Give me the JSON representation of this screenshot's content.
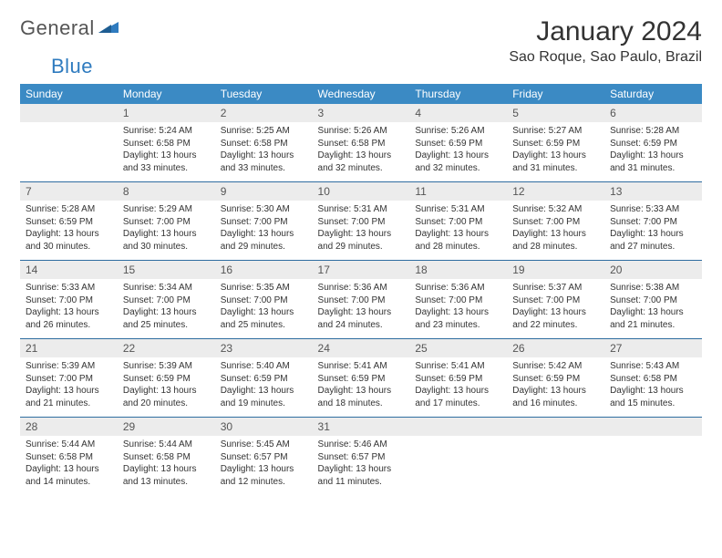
{
  "brand": {
    "part1": "General",
    "part2": "Blue"
  },
  "title": "January 2024",
  "location": "Sao Roque, Sao Paulo, Brazil",
  "colors": {
    "header_bg": "#3b8ac4",
    "header_text": "#ffffff",
    "daynum_bg": "#ececec",
    "divider": "#2f6da0",
    "text": "#333333",
    "logo_blue": "#2f7bbf"
  },
  "dayNames": [
    "Sunday",
    "Monday",
    "Tuesday",
    "Wednesday",
    "Thursday",
    "Friday",
    "Saturday"
  ],
  "weeks": [
    [
      null,
      {
        "n": "1",
        "sr": "5:24 AM",
        "ss": "6:58 PM",
        "dl": "13 hours and 33 minutes."
      },
      {
        "n": "2",
        "sr": "5:25 AM",
        "ss": "6:58 PM",
        "dl": "13 hours and 33 minutes."
      },
      {
        "n": "3",
        "sr": "5:26 AM",
        "ss": "6:58 PM",
        "dl": "13 hours and 32 minutes."
      },
      {
        "n": "4",
        "sr": "5:26 AM",
        "ss": "6:59 PM",
        "dl": "13 hours and 32 minutes."
      },
      {
        "n": "5",
        "sr": "5:27 AM",
        "ss": "6:59 PM",
        "dl": "13 hours and 31 minutes."
      },
      {
        "n": "6",
        "sr": "5:28 AM",
        "ss": "6:59 PM",
        "dl": "13 hours and 31 minutes."
      }
    ],
    [
      {
        "n": "7",
        "sr": "5:28 AM",
        "ss": "6:59 PM",
        "dl": "13 hours and 30 minutes."
      },
      {
        "n": "8",
        "sr": "5:29 AM",
        "ss": "7:00 PM",
        "dl": "13 hours and 30 minutes."
      },
      {
        "n": "9",
        "sr": "5:30 AM",
        "ss": "7:00 PM",
        "dl": "13 hours and 29 minutes."
      },
      {
        "n": "10",
        "sr": "5:31 AM",
        "ss": "7:00 PM",
        "dl": "13 hours and 29 minutes."
      },
      {
        "n": "11",
        "sr": "5:31 AM",
        "ss": "7:00 PM",
        "dl": "13 hours and 28 minutes."
      },
      {
        "n": "12",
        "sr": "5:32 AM",
        "ss": "7:00 PM",
        "dl": "13 hours and 28 minutes."
      },
      {
        "n": "13",
        "sr": "5:33 AM",
        "ss": "7:00 PM",
        "dl": "13 hours and 27 minutes."
      }
    ],
    [
      {
        "n": "14",
        "sr": "5:33 AM",
        "ss": "7:00 PM",
        "dl": "13 hours and 26 minutes."
      },
      {
        "n": "15",
        "sr": "5:34 AM",
        "ss": "7:00 PM",
        "dl": "13 hours and 25 minutes."
      },
      {
        "n": "16",
        "sr": "5:35 AM",
        "ss": "7:00 PM",
        "dl": "13 hours and 25 minutes."
      },
      {
        "n": "17",
        "sr": "5:36 AM",
        "ss": "7:00 PM",
        "dl": "13 hours and 24 minutes."
      },
      {
        "n": "18",
        "sr": "5:36 AM",
        "ss": "7:00 PM",
        "dl": "13 hours and 23 minutes."
      },
      {
        "n": "19",
        "sr": "5:37 AM",
        "ss": "7:00 PM",
        "dl": "13 hours and 22 minutes."
      },
      {
        "n": "20",
        "sr": "5:38 AM",
        "ss": "7:00 PM",
        "dl": "13 hours and 21 minutes."
      }
    ],
    [
      {
        "n": "21",
        "sr": "5:39 AM",
        "ss": "7:00 PM",
        "dl": "13 hours and 21 minutes."
      },
      {
        "n": "22",
        "sr": "5:39 AM",
        "ss": "6:59 PM",
        "dl": "13 hours and 20 minutes."
      },
      {
        "n": "23",
        "sr": "5:40 AM",
        "ss": "6:59 PM",
        "dl": "13 hours and 19 minutes."
      },
      {
        "n": "24",
        "sr": "5:41 AM",
        "ss": "6:59 PM",
        "dl": "13 hours and 18 minutes."
      },
      {
        "n": "25",
        "sr": "5:41 AM",
        "ss": "6:59 PM",
        "dl": "13 hours and 17 minutes."
      },
      {
        "n": "26",
        "sr": "5:42 AM",
        "ss": "6:59 PM",
        "dl": "13 hours and 16 minutes."
      },
      {
        "n": "27",
        "sr": "5:43 AM",
        "ss": "6:58 PM",
        "dl": "13 hours and 15 minutes."
      }
    ],
    [
      {
        "n": "28",
        "sr": "5:44 AM",
        "ss": "6:58 PM",
        "dl": "13 hours and 14 minutes."
      },
      {
        "n": "29",
        "sr": "5:44 AM",
        "ss": "6:58 PM",
        "dl": "13 hours and 13 minutes."
      },
      {
        "n": "30",
        "sr": "5:45 AM",
        "ss": "6:57 PM",
        "dl": "13 hours and 12 minutes."
      },
      {
        "n": "31",
        "sr": "5:46 AM",
        "ss": "6:57 PM",
        "dl": "13 hours and 11 minutes."
      },
      null,
      null,
      null
    ]
  ],
  "labels": {
    "sunrise": "Sunrise:",
    "sunset": "Sunset:",
    "daylight": "Daylight:"
  }
}
